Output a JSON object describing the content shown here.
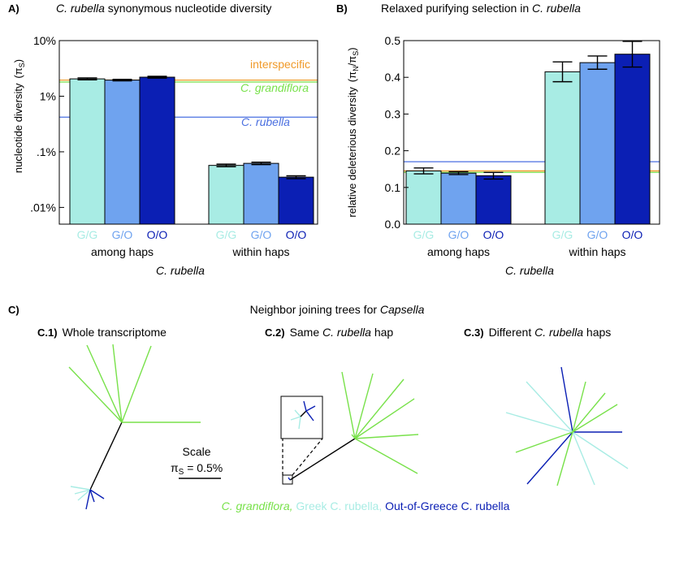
{
  "colors": {
    "greek": "#a8ece4",
    "mixed": "#6fa3ef",
    "outgreece": "#0b1fb4",
    "grandiflora": "#78e14a",
    "rubella_line": "#4a6fe0",
    "interspecific": "#f09a2a",
    "black": "#000000"
  },
  "chart_data": [
    {
      "type": "bar",
      "panel_label": "A)",
      "title_italic": "C. rubella",
      "title_rest": " synonymous nucleotide diversity",
      "ylabel_main": "nucleotide diversity",
      "ylabel_symbol": "(π",
      "ylabel_sub": "S",
      "ylabel_close": ")",
      "yscale": "log",
      "ylim": [
        0.005,
        10
      ],
      "yticks": [
        {
          "value": 10,
          "label": "10%"
        },
        {
          "value": 1,
          "label": "1%"
        },
        {
          "value": 0.1,
          "label": ".1%"
        },
        {
          "value": 0.01,
          "label": ".01%"
        }
      ],
      "groups": [
        {
          "name": "among haps",
          "bars": [
            {
              "label": "G/G",
              "series": "greek",
              "value": 2.05,
              "err": 0.08
            },
            {
              "label": "G/O",
              "series": "mixed",
              "value": 1.95,
              "err": 0.06
            },
            {
              "label": "O/O",
              "series": "outgreece",
              "value": 2.2,
              "err": 0.08
            }
          ]
        },
        {
          "name": "within haps",
          "bars": [
            {
              "label": "G/G",
              "series": "greek",
              "value": 0.057,
              "err": 0.003
            },
            {
              "label": "G/O",
              "series": "mixed",
              "value": 0.062,
              "err": 0.003
            },
            {
              "label": "O/O",
              "series": "outgreece",
              "value": 0.035,
              "err": 0.002
            }
          ]
        }
      ],
      "reference_lines": [
        {
          "label": "interspecific",
          "value": 1.95,
          "color": "interspecific",
          "italic": false
        },
        {
          "label": "C. grandiflora",
          "value": 1.8,
          "color": "grandiflora",
          "italic": true
        },
        {
          "label": "C. rubella",
          "value": 0.42,
          "color": "rubella_line",
          "italic": true
        }
      ],
      "xlabel": "C. rubella"
    },
    {
      "type": "bar",
      "panel_label": "B)",
      "title_rest": "Relaxed purifying selection in ",
      "title_italic": "C. rubella",
      "ylabel_main": "relative deleterious diversity",
      "ylabel_symbol": "(π",
      "ylabel_sub": "N",
      "ylabel_mid": "/π",
      "ylabel_sub2": "S",
      "ylabel_close": ")",
      "yscale": "linear",
      "ylim": [
        0,
        0.5
      ],
      "yticks": [
        {
          "value": 0,
          "label": "0.0"
        },
        {
          "value": 0.1,
          "label": "0.1"
        },
        {
          "value": 0.2,
          "label": "0.2"
        },
        {
          "value": 0.3,
          "label": "0.3"
        },
        {
          "value": 0.4,
          "label": "0.4"
        },
        {
          "value": 0.5,
          "label": "0.5"
        }
      ],
      "groups": [
        {
          "name": "among haps",
          "bars": [
            {
              "label": "G/G",
              "series": "greek",
              "value": 0.145,
              "err": 0.008
            },
            {
              "label": "G/O",
              "series": "mixed",
              "value": 0.139,
              "err": 0.004
            },
            {
              "label": "O/O",
              "series": "outgreece",
              "value": 0.132,
              "err": 0.009
            }
          ]
        },
        {
          "name": "within haps",
          "bars": [
            {
              "label": "G/G",
              "series": "greek",
              "value": 0.415,
              "err": 0.027
            },
            {
              "label": "G/O",
              "series": "mixed",
              "value": 0.44,
              "err": 0.018
            },
            {
              "label": "O/O",
              "series": "outgreece",
              "value": 0.463,
              "err": 0.035
            }
          ]
        }
      ],
      "reference_lines": [
        {
          "value": 0.17,
          "color": "rubella_line"
        },
        {
          "value": 0.145,
          "color": "interspecific"
        },
        {
          "value": 0.141,
          "color": "grandiflora"
        }
      ],
      "xlabel": "C. rubella"
    }
  ],
  "panel_c": {
    "label": "C)",
    "title_rest": "Neighbor joining trees for ",
    "title_italic": "Capsella",
    "trees": [
      {
        "tag": "C.1)",
        "title_rest": "Whole transcriptome"
      },
      {
        "tag": "C.2)",
        "title_rest": "Same ",
        "title_italic": "C. rubella",
        "title_end": " hap"
      },
      {
        "tag": "C.3)",
        "title_rest": "Different ",
        "title_italic": "C. rubella",
        "title_end": " haps"
      }
    ],
    "scale_label": "Scale",
    "scale_symbol": "π",
    "scale_sub": "S",
    "scale_value": " = 0.5%",
    "legend": {
      "grandiflora": "C. grandiflora,",
      "greek": " Greek C. rubella,",
      "outgreece": " Out-of-Greece C. rubella"
    }
  }
}
